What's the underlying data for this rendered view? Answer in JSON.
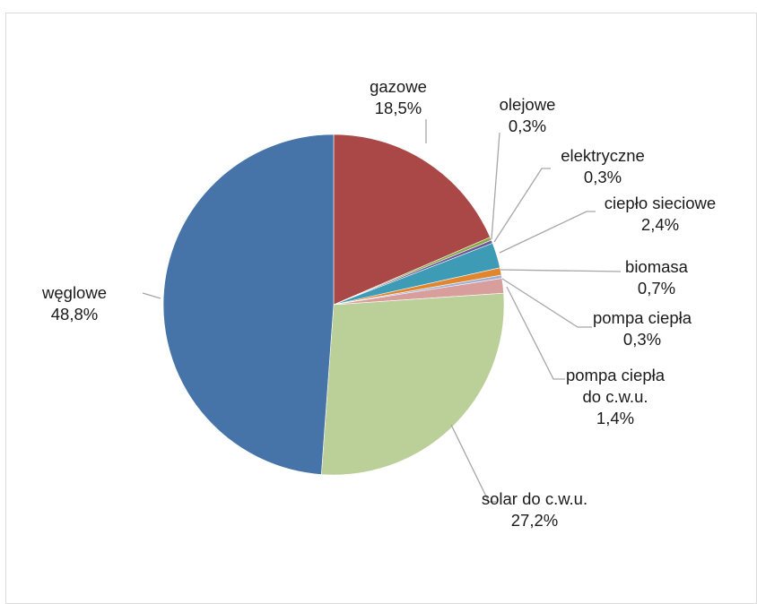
{
  "chart_data": {
    "type": "pie",
    "slices": [
      {
        "label": "gazowe",
        "value": 18.5,
        "display": "18,5%",
        "color": "#a94846"
      },
      {
        "label": "olejowe",
        "value": 0.3,
        "display": "0,3%",
        "color": "#8aa746"
      },
      {
        "label": "elektryczne",
        "value": 0.3,
        "display": "0,3%",
        "color": "#6d5596"
      },
      {
        "label": "ciepło sieciowe",
        "value": 2.4,
        "display": "2,4%",
        "color": "#3d9bb5"
      },
      {
        "label": "biomasa",
        "value": 0.7,
        "display": "0,7%",
        "color": "#e1862f"
      },
      {
        "label": "pompa ciepła",
        "value": 0.3,
        "display": "0,3%",
        "color": "#9db1d6"
      },
      {
        "label": "pompa ciepła do c.w.u.",
        "value": 1.4,
        "display": "1,4%",
        "color": "#d79e9c"
      },
      {
        "label": "solar do c.w.u.",
        "value": 27.2,
        "display": "27,2%",
        "color": "#bbd099"
      },
      {
        "label": "węglowe",
        "value": 48.8,
        "display": "48,8%",
        "color": "#4673a8"
      }
    ],
    "start": "12 o'clock",
    "direction": "clockwise",
    "legend": "none"
  }
}
